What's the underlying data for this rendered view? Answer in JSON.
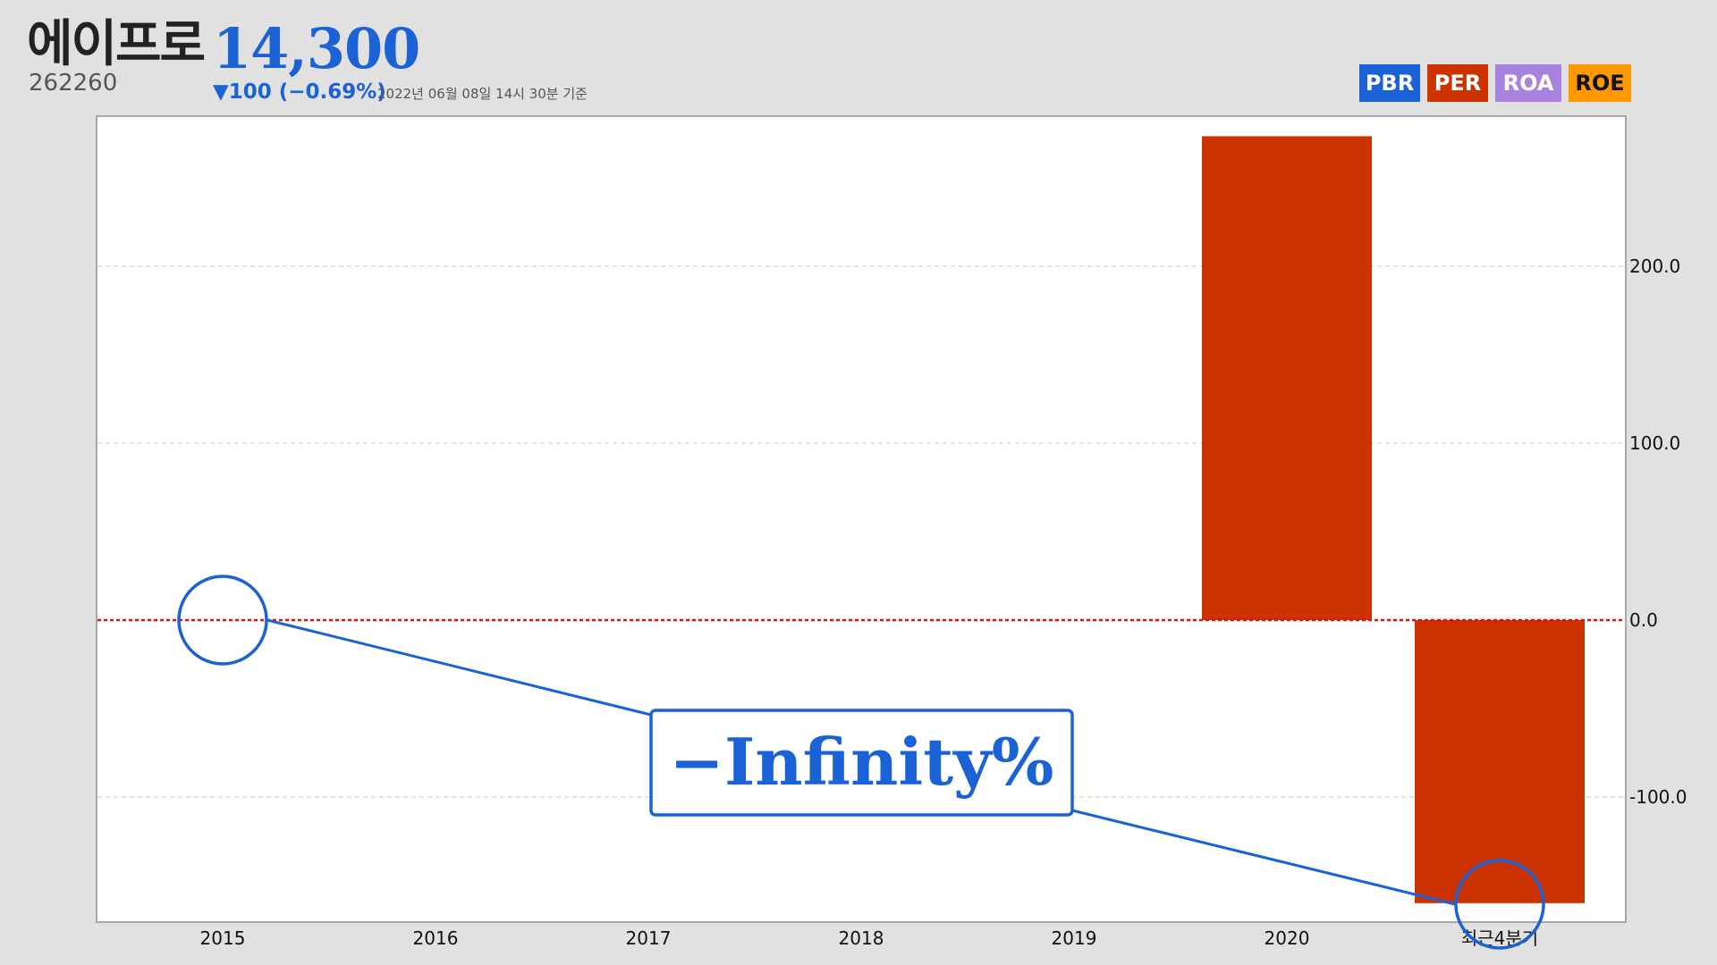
{
  "header": {
    "company_name": "에이프로",
    "ticker": "262260",
    "price": "14,300",
    "change": "▼100 (−0.69%)",
    "as_of": "2022년 06월 08일 14시 30분 기준"
  },
  "metric_tabs": [
    {
      "label": "PBR",
      "color": "#1a62d6"
    },
    {
      "label": "PER",
      "color": "#cc3300"
    },
    {
      "label": "ROA",
      "color": "#a982de"
    },
    {
      "label": "ROE",
      "color": "#ff9900"
    }
  ],
  "annotation": {
    "text": "−Infinity%",
    "color": "#1a62d6"
  },
  "chart_data": {
    "type": "bar",
    "metric": "PER",
    "categories": [
      "2015",
      "2016",
      "2017",
      "2018",
      "2019",
      "2020",
      "최근4분기"
    ],
    "values": [
      null,
      null,
      null,
      null,
      null,
      273.5,
      -160.0
    ],
    "bar_color": "#cc3300",
    "y_ticks": [
      200.0,
      100.0,
      0.0,
      -100.0
    ],
    "y_tick_labels": [
      "200.0",
      "100.0",
      "0.0",
      "-100.0"
    ],
    "ylim": [
      -170,
      285
    ],
    "y_axis_side": "right",
    "grid": true,
    "zero_line_color": "#e01010"
  }
}
